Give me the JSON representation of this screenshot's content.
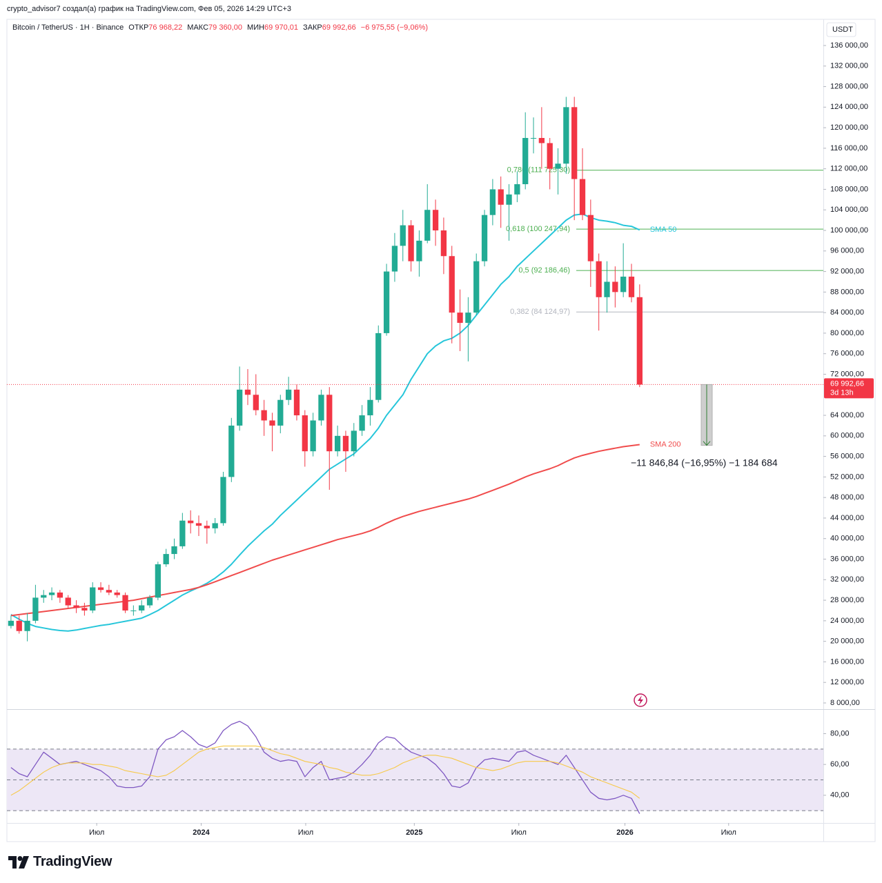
{
  "header": {
    "caption": "crypto_advisor7 создал(а) график на TradingView.com, Фев 05, 2026 14:29 UTC+3",
    "symbol": "Bitcoin / TetherUS · 1H · Binance",
    "ohlc": [
      {
        "label": "ОТКР",
        "value": "76 968,22"
      },
      {
        "label": "МАКС",
        "value": "79 360,00"
      },
      {
        "label": "МИН",
        "value": "69 970,01"
      },
      {
        "label": "ЗАКР",
        "value": "69 992,66"
      }
    ],
    "change": "−6 975,55 (−9,06%)"
  },
  "chart_data": [
    {
      "type": "candlestick",
      "currency": "USDT",
      "up_color": "#22ab94",
      "down_color": "#f23645",
      "open": [
        23000,
        24000,
        22000,
        24000,
        28500,
        29000,
        29500,
        28500,
        27000,
        26500,
        26000,
        30500,
        30000,
        29500,
        29000,
        26000,
        26000,
        27000,
        28500,
        35000,
        37000,
        38500,
        43500,
        43000,
        42500,
        42000,
        43000,
        52000,
        62000,
        69000,
        68000,
        65000,
        63000,
        62000,
        67000,
        69000,
        64000,
        57000,
        63000,
        68000,
        57000,
        60000,
        57000,
        61000,
        64000,
        67000,
        80000,
        92000,
        97000,
        101000,
        94000,
        98000,
        104000,
        100000,
        95000,
        84000,
        82000,
        84000,
        94000,
        103000,
        108000,
        105000,
        107000,
        109000,
        118000,
        118000,
        117000,
        112000,
        113000,
        124000,
        110000,
        103000,
        94000,
        87000,
        90000,
        88000,
        91000,
        87000
      ],
      "high": [
        25000,
        25000,
        25500,
        31000,
        30000,
        30500,
        30000,
        29000,
        28000,
        27500,
        31500,
        31500,
        31000,
        30000,
        29500,
        27000,
        28000,
        29000,
        35500,
        38000,
        40000,
        45000,
        45500,
        44500,
        43500,
        44000,
        53000,
        63500,
        73500,
        73000,
        72000,
        67000,
        64500,
        68000,
        71500,
        70000,
        65000,
        64500,
        69000,
        69500,
        62000,
        61000,
        62500,
        66000,
        69500,
        81500,
        93500,
        99500,
        104000,
        102000,
        100000,
        109000,
        106000,
        102500,
        97000,
        88500,
        87000,
        95500,
        104000,
        110000,
        110500,
        109000,
        111500,
        123000,
        122000,
        124000,
        118000,
        116000,
        126000,
        126000,
        116000,
        106000,
        95500,
        94000,
        93000,
        97500,
        93500,
        89500
      ],
      "low": [
        22500,
        21500,
        20000,
        23500,
        27500,
        28000,
        27500,
        26500,
        25500,
        25000,
        25500,
        29500,
        29000,
        28500,
        25500,
        25000,
        25500,
        26500,
        28000,
        34500,
        36000,
        38000,
        41000,
        40500,
        39000,
        41000,
        42500,
        51000,
        61000,
        66000,
        64000,
        60000,
        57000,
        60500,
        66000,
        63000,
        54000,
        56000,
        62000,
        49500,
        56000,
        53000,
        56000,
        60000,
        62000,
        66500,
        79500,
        90000,
        94000,
        92000,
        91000,
        97500,
        97000,
        91500,
        78000,
        76500,
        74500,
        83500,
        93000,
        101000,
        100500,
        98000,
        105500,
        108000,
        115000,
        112000,
        108000,
        107000,
        111000,
        102000,
        102000,
        89000,
        80500,
        84000,
        85000,
        87000,
        86000,
        69500
      ],
      "close": [
        24000,
        22000,
        24000,
        28500,
        29000,
        29500,
        28500,
        27000,
        26500,
        26000,
        30500,
        30000,
        29500,
        29000,
        26000,
        26000,
        27000,
        28500,
        35000,
        37000,
        38500,
        43500,
        43000,
        42500,
        42000,
        43000,
        52000,
        62000,
        69000,
        68000,
        65000,
        63000,
        62000,
        67000,
        69000,
        64000,
        57000,
        63000,
        68000,
        57000,
        60000,
        57000,
        61000,
        64000,
        67000,
        80000,
        92000,
        97000,
        101000,
        94000,
        98000,
        104000,
        100000,
        95000,
        84000,
        82000,
        84000,
        94000,
        103000,
        108000,
        105000,
        107000,
        109000,
        118000,
        118000,
        117000,
        112000,
        113000,
        124000,
        110000,
        103000,
        94000,
        87000,
        90000,
        88000,
        91000,
        87000,
        69992.66
      ],
      "series": [
        {
          "name": "SMA 50",
          "color": "#26c6da",
          "values": [
            25200,
            24300,
            23500,
            22900,
            22600,
            22300,
            22100,
            22000,
            22200,
            22500,
            22800,
            23100,
            23300,
            23600,
            23900,
            24200,
            24500,
            25200,
            26000,
            27000,
            28000,
            29000,
            29800,
            30500,
            31300,
            32300,
            33500,
            35000,
            36800,
            38500,
            40000,
            41500,
            42800,
            44500,
            46000,
            47500,
            49000,
            50500,
            52000,
            53500,
            54500,
            55500,
            56500,
            58000,
            59500,
            61500,
            64000,
            66000,
            68000,
            71000,
            73500,
            76000,
            77500,
            78500,
            79000,
            80000,
            81500,
            83500,
            85500,
            87500,
            89500,
            91000,
            93000,
            94500,
            96000,
            97500,
            99000,
            100500,
            102000,
            103000,
            103200,
            102500,
            102000,
            101800,
            101500,
            101000,
            100800,
            100100
          ]
        },
        {
          "name": "SMA 200",
          "color": "#f04b4b",
          "values": [
            25000,
            25200,
            25400,
            25600,
            25800,
            26000,
            26200,
            26400,
            26600,
            26800,
            27000,
            27200,
            27400,
            27600,
            27800,
            28000,
            28300,
            28600,
            28900,
            29200,
            29500,
            29800,
            30100,
            30500,
            31000,
            31600,
            32200,
            32800,
            33400,
            34000,
            34600,
            35200,
            35800,
            36300,
            36800,
            37300,
            37800,
            38300,
            38800,
            39300,
            39800,
            40200,
            40600,
            41000,
            41500,
            42200,
            43000,
            43700,
            44300,
            44800,
            45300,
            45700,
            46100,
            46500,
            46900,
            47300,
            47700,
            48200,
            48800,
            49400,
            50000,
            50600,
            51300,
            52000,
            52600,
            53100,
            53600,
            54200,
            55000,
            55700,
            56200,
            56600,
            57000,
            57300,
            57600,
            57900,
            58100,
            58300
          ]
        }
      ],
      "xlim": [
        0,
        100
      ],
      "xticks": [
        {
          "value": 11.0,
          "label": "Июл"
        },
        {
          "value": 23.8,
          "label": "2024"
        },
        {
          "value": 36.6,
          "label": "Июл"
        },
        {
          "value": 49.9,
          "label": "2025"
        },
        {
          "value": 62.7,
          "label": "Июл"
        },
        {
          "value": 75.7,
          "label": "2026"
        },
        {
          "value": 88.4,
          "label": "Июл"
        }
      ],
      "ylim": [
        6925,
        141100
      ],
      "yticks": [
        {
          "value": 8000,
          "label": "8 000,00"
        },
        {
          "value": 12000,
          "label": "12 000,00"
        },
        {
          "value": 16000,
          "label": "16 000,00"
        },
        {
          "value": 20000,
          "label": "20 000,00"
        },
        {
          "value": 24000,
          "label": "24 000,00"
        },
        {
          "value": 28000,
          "label": "28 000,00"
        },
        {
          "value": 32000,
          "label": "32 000,00"
        },
        {
          "value": 36000,
          "label": "36 000,00"
        },
        {
          "value": 40000,
          "label": "40 000,00"
        },
        {
          "value": 44000,
          "label": "44 000,00"
        },
        {
          "value": 48000,
          "label": "48 000,00"
        },
        {
          "value": 52000,
          "label": "52 000,00"
        },
        {
          "value": 56000,
          "label": "56 000,00"
        },
        {
          "value": 60000,
          "label": "60 000,00"
        },
        {
          "value": 64000,
          "label": "64 000,00"
        },
        {
          "value": 72000,
          "label": "72 000,00"
        },
        {
          "value": 76000,
          "label": "76 000,00"
        },
        {
          "value": 80000,
          "label": "80 000,00"
        },
        {
          "value": 84000,
          "label": "84 000,00"
        },
        {
          "value": 88000,
          "label": "88 000,00"
        },
        {
          "value": 92000,
          "label": "92 000,00"
        },
        {
          "value": 96000,
          "label": "96 000,00"
        },
        {
          "value": 100000,
          "label": "100 000,00"
        },
        {
          "value": 104000,
          "label": "104 000,00"
        },
        {
          "value": 108000,
          "label": "108 000,00"
        },
        {
          "value": 112000,
          "label": "112 000,00"
        },
        {
          "value": 116000,
          "label": "116 000,00"
        },
        {
          "value": 120000,
          "label": "120 000,00"
        },
        {
          "value": 124000,
          "label": "124 000,00"
        },
        {
          "value": 128000,
          "label": "128 000,00"
        },
        {
          "value": 132000,
          "label": "132 000,00"
        },
        {
          "value": 136000,
          "label": "136 000,00"
        }
      ],
      "fib_levels": [
        {
          "value": 111725.3,
          "label": "0,786 (111 725,30)",
          "color": "#4caf50"
        },
        {
          "value": 100247.94,
          "label": "0,618 (100 247,94)",
          "color": "#4caf50"
        },
        {
          "value": 92186.46,
          "label": "0,5 (92 186,46)",
          "color": "#4caf50"
        },
        {
          "value": 84124.97,
          "label": "0,382 (84 124,97)",
          "color": "#b2b5be"
        }
      ],
      "last_price": {
        "value": 69992.66,
        "label": "69 992,66",
        "countdown": "3d 13h",
        "color": "#f23645"
      },
      "measure": {
        "from": 69992.66,
        "to": 58145.82,
        "label": "−11 846,84 (−16,95%) −1 184 684"
      }
    },
    {
      "type": "line",
      "band_color": "#ede7f6",
      "levels": [
        30,
        50,
        70
      ],
      "series": [
        {
          "color": "#7e57c2",
          "values": [
            58,
            54,
            52,
            60,
            68,
            64,
            60,
            61,
            62,
            60,
            58,
            56,
            52,
            46,
            45,
            45,
            46,
            52,
            70,
            76,
            78,
            82,
            78,
            73,
            71,
            74,
            82,
            86,
            88,
            85,
            78,
            68,
            64,
            62,
            63,
            62,
            52,
            58,
            62,
            50,
            51,
            52,
            55,
            60,
            66,
            74,
            78,
            77,
            72,
            68,
            66,
            64,
            60,
            54,
            46,
            45,
            48,
            58,
            63,
            64,
            63,
            62,
            68,
            69,
            66,
            64,
            62,
            60,
            66,
            58,
            50,
            42,
            38,
            37,
            38,
            40,
            38,
            28
          ]
        },
        {
          "color": "#f7c948",
          "values": [
            40,
            43,
            47,
            51,
            55,
            58,
            60,
            61,
            61,
            61,
            60,
            60,
            59,
            58,
            56,
            55,
            54,
            53,
            52,
            53,
            56,
            60,
            64,
            68,
            70,
            71,
            72,
            72,
            72,
            72,
            72,
            71,
            69,
            67,
            66,
            64,
            62,
            61,
            60,
            58,
            57,
            55,
            54,
            53,
            53,
            54,
            56,
            58,
            61,
            63,
            65,
            66,
            66,
            65,
            64,
            62,
            60,
            58,
            57,
            56,
            57,
            59,
            61,
            62,
            62,
            62,
            62,
            61,
            59,
            57,
            55,
            52,
            50,
            48,
            46,
            44,
            42,
            38
          ]
        }
      ],
      "ylim": [
        22,
        95
      ],
      "yticks": [
        {
          "value": 80,
          "label": "80,00"
        },
        {
          "value": 60,
          "label": "60,00"
        },
        {
          "value": 40,
          "label": "40,00"
        }
      ]
    }
  ],
  "footer": {
    "brand": "TradingView"
  }
}
